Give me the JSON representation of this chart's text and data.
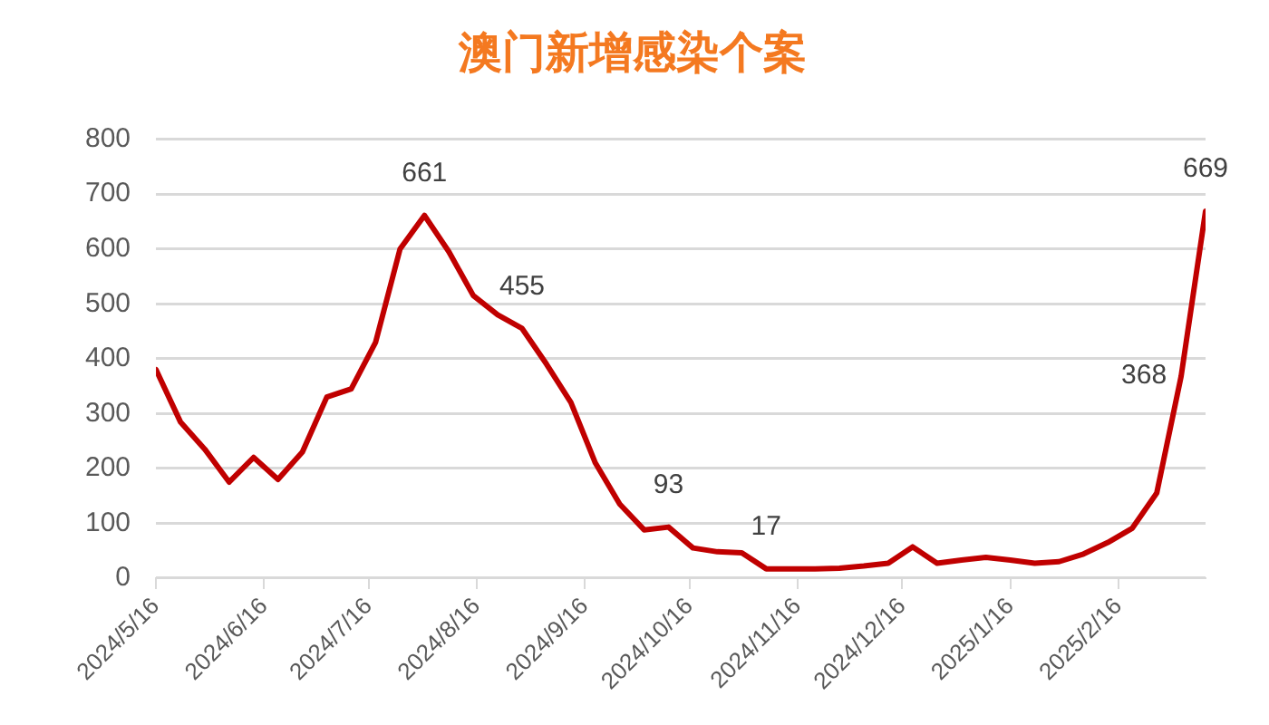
{
  "chart_data": {
    "type": "line",
    "title": "澳门新增感染个案",
    "x": [
      "2024-05-16",
      "2024-05-23",
      "2024-05-30",
      "2024-06-06",
      "2024-06-13",
      "2024-06-20",
      "2024-06-27",
      "2024-07-04",
      "2024-07-11",
      "2024-07-18",
      "2024-07-25",
      "2024-08-01",
      "2024-08-08",
      "2024-08-15",
      "2024-08-22",
      "2024-08-29",
      "2024-09-05",
      "2024-09-12",
      "2024-09-19",
      "2024-09-26",
      "2024-10-03",
      "2024-10-10",
      "2024-10-17",
      "2024-10-24",
      "2024-10-31",
      "2024-11-07",
      "2024-11-14",
      "2024-11-21",
      "2024-11-28",
      "2024-12-05",
      "2024-12-12",
      "2024-12-19",
      "2024-12-26",
      "2025-01-02",
      "2025-01-09",
      "2025-01-16",
      "2025-01-23",
      "2025-01-30",
      "2025-02-06",
      "2025-02-13",
      "2025-02-20",
      "2025-02-27",
      "2025-03-06",
      "2025-03-13"
    ],
    "values": [
      380,
      285,
      235,
      175,
      220,
      180,
      230,
      330,
      345,
      430,
      600,
      661,
      595,
      515,
      480,
      455,
      390,
      320,
      210,
      135,
      88,
      93,
      55,
      48,
      46,
      17,
      17,
      17,
      18,
      22,
      27,
      57,
      27,
      33,
      38,
      33,
      27,
      30,
      44,
      65,
      91,
      155,
      368,
      669
    ],
    "value_labels": [
      null,
      null,
      null,
      null,
      null,
      null,
      null,
      null,
      null,
      null,
      null,
      "661",
      null,
      null,
      null,
      "455",
      null,
      null,
      null,
      null,
      null,
      "93",
      null,
      null,
      null,
      "17",
      null,
      null,
      null,
      null,
      null,
      null,
      null,
      null,
      null,
      null,
      null,
      null,
      null,
      null,
      null,
      null,
      "368",
      "669"
    ],
    "color": "#c00000",
    "xlim": [
      "2024-05-16",
      "2025-03-13"
    ],
    "xticks": [
      {
        "value": "2024-05-16",
        "label": "2024/5/16"
      },
      {
        "value": "2024-06-16",
        "label": "2024/6/16"
      },
      {
        "value": "2024-07-16",
        "label": "2024/7/16"
      },
      {
        "value": "2024-08-16",
        "label": "2024/8/16"
      },
      {
        "value": "2024-09-16",
        "label": "2024/9/16"
      },
      {
        "value": "2024-10-16",
        "label": "2024/10/16"
      },
      {
        "value": "2024-11-16",
        "label": "2024/11/16"
      },
      {
        "value": "2024-12-16",
        "label": "2024/12/16"
      },
      {
        "value": "2025-01-16",
        "label": "2025/1/16"
      },
      {
        "value": "2025-02-16",
        "label": "2025/2/16"
      }
    ],
    "ylim": [
      0,
      800
    ],
    "yticks": [
      0,
      100,
      200,
      300,
      400,
      500,
      600,
      700,
      800
    ],
    "grid": "y",
    "marker": "none"
  }
}
